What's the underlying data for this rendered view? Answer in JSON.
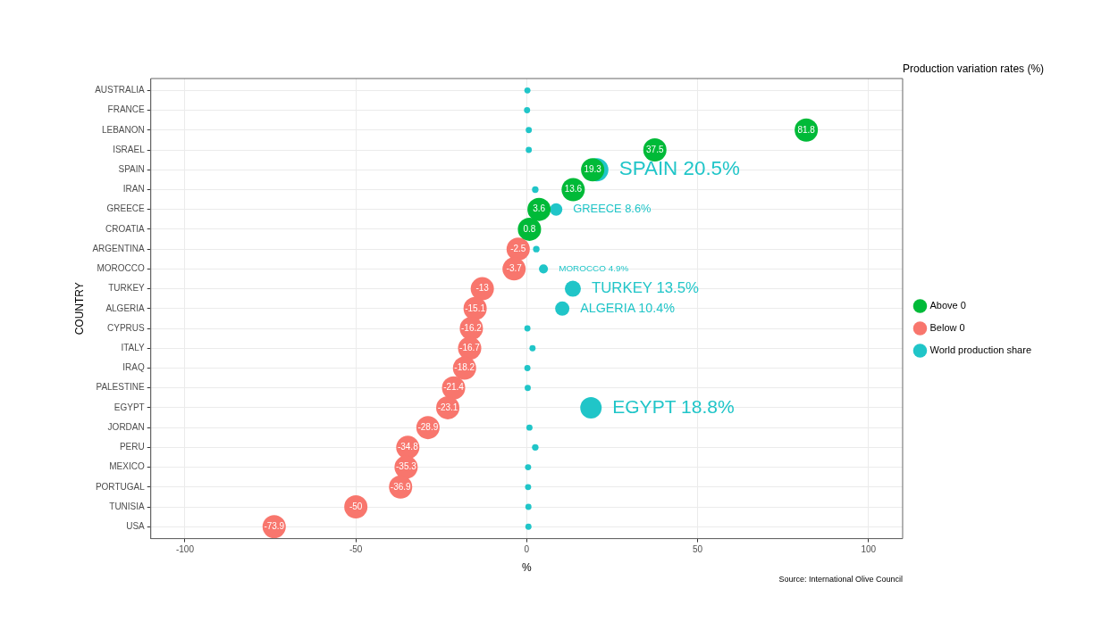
{
  "chart_data": {
    "type": "bubble",
    "marker": "circle",
    "orientation": "horizontal",
    "xlabel": "%",
    "ylabel": "COUNTRY",
    "legend": "right",
    "legend_title": "Production variation rates (%)",
    "grid": true,
    "annotations": [
      "Source: International Olive Council"
    ],
    "categories": [
      "AUSTRALIA",
      "FRANCE",
      "LEBANON",
      "ISRAEL",
      "SPAIN",
      "IRAN",
      "GREECE",
      "CROATIA",
      "ARGENTINA",
      "MOROCCO",
      "TURKEY",
      "ALGERIA",
      "CYPRUS",
      "ITALY",
      "IRAQ",
      "PALESTINE",
      "EGYPT",
      "JORDAN",
      "PERU",
      "MEXICO",
      "PORTUGAL",
      "TUNISIA",
      "USA"
    ],
    "xlim": [
      -110,
      110
    ],
    "xticks": [
      -100,
      -50,
      0,
      50,
      100
    ],
    "series": [
      {
        "name": "Above 0",
        "type": "scatter",
        "color": "#00ba38",
        "data_labels": true,
        "values": [
          null,
          null,
          81.8,
          37.5,
          19.3,
          13.6,
          3.6,
          0.8,
          null,
          null,
          null,
          null,
          null,
          null,
          null,
          null,
          null,
          null,
          null,
          null,
          null,
          null,
          null
        ]
      },
      {
        "name": "Below 0",
        "type": "scatter",
        "color": "#f8766d",
        "data_labels": true,
        "values": [
          null,
          null,
          null,
          null,
          null,
          null,
          null,
          null,
          -2.5,
          -3.7,
          -13,
          -15.1,
          -16.2,
          -16.7,
          -18.2,
          -21.4,
          -23.1,
          -28.9,
          -34.8,
          -35.3,
          -36.9,
          -50,
          -73.9
        ]
      },
      {
        "name": "World production share",
        "type": "bubble",
        "color": "#20c5c8",
        "values": [
          0.2,
          0.1,
          0.6,
          0.6,
          20.5,
          2.5,
          8.6,
          null,
          2.8,
          4.9,
          13.5,
          10.4,
          0.2,
          1.7,
          0.2,
          0.3,
          18.8,
          0.8,
          2.5,
          0.4,
          0.4,
          0.5,
          0.5
        ],
        "sizes": [
          0.07,
          0.07,
          0.07,
          0.07,
          1,
          0.08,
          0.29,
          null,
          0.08,
          0.15,
          0.48,
          0.38,
          0.07,
          0.07,
          0.07,
          0.07,
          0.85,
          0.07,
          0.08,
          0.07,
          0.07,
          0.07,
          0.07
        ],
        "value_labels": [
          null,
          null,
          null,
          null,
          "SPAIN 20.5%",
          null,
          "GREECE 8.6%",
          null,
          null,
          "MOROCCO 4.9%",
          "TURKEY 13.5%",
          "ALGERIA 10.4%",
          null,
          null,
          null,
          null,
          "EGYPT 18.8%",
          null,
          null,
          null,
          null,
          null,
          null
        ]
      }
    ]
  }
}
